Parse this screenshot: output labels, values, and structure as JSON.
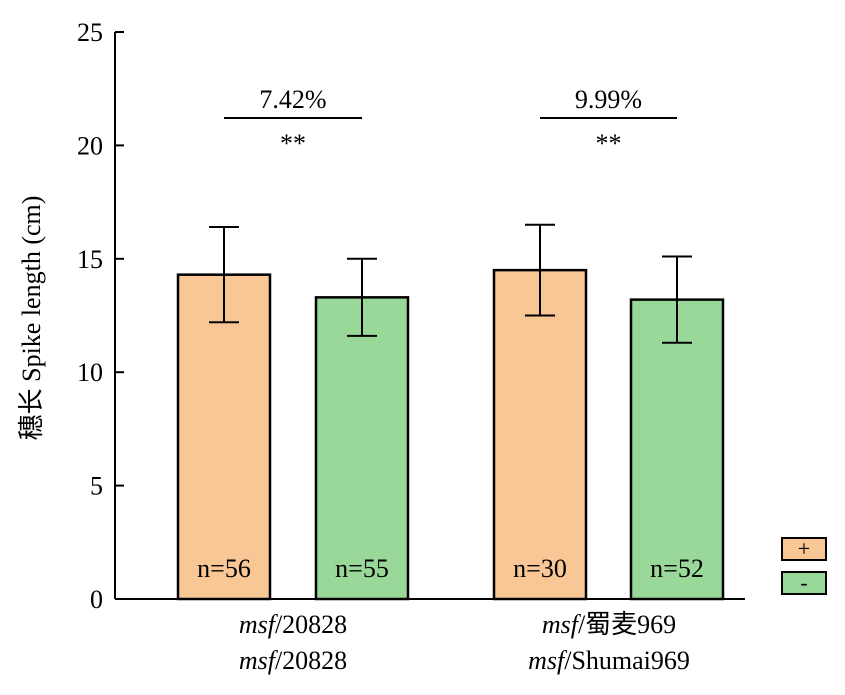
{
  "chart_data": {
    "type": "bar",
    "ylabel": "穗长 Spike length (cm)",
    "ylim": [
      0,
      25
    ],
    "yticks": [
      0,
      5,
      10,
      15,
      20,
      25
    ],
    "groups": [
      {
        "label_line1_italic": "msf",
        "label_line1_rest": "/20828",
        "label_line2_italic": "msf",
        "label_line2_rest": "/20828",
        "bars": [
          {
            "series": "+",
            "value": 14.3,
            "error": 2.1,
            "n_label": "n=56",
            "color": "#f9c795"
          },
          {
            "series": "-",
            "value": 13.3,
            "error": 1.7,
            "n_label": "n=55",
            "color": "#9ad89a"
          }
        ],
        "percent_label": "7.42%",
        "significance": "**"
      },
      {
        "label_line1_italic": "msf",
        "label_line1_rest": "/蜀麦969",
        "label_line2_italic": "msf",
        "label_line2_rest": "/Shumai969",
        "bars": [
          {
            "series": "+",
            "value": 14.5,
            "error": 2.0,
            "n_label": "n=30",
            "color": "#f9c795"
          },
          {
            "series": "-",
            "value": 13.2,
            "error": 1.9,
            "n_label": "n=52",
            "color": "#9ad89a"
          }
        ],
        "percent_label": "9.99%",
        "significance": "**"
      }
    ],
    "legend": [
      {
        "label": "+",
        "color": "#f9c795"
      },
      {
        "label": "-",
        "color": "#9ad89a"
      }
    ],
    "legend_position": "bottom-right",
    "grid": false
  }
}
